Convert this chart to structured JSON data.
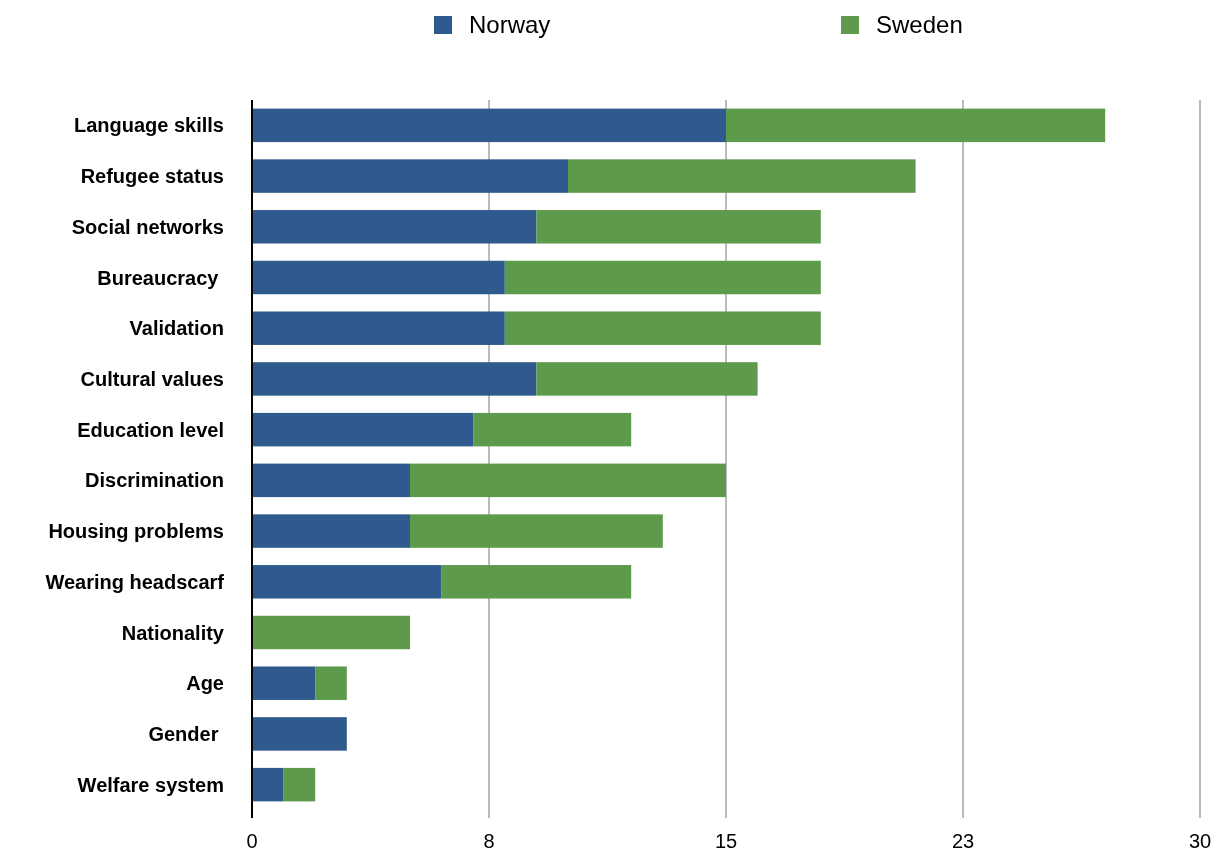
{
  "chart_data": {
    "type": "bar",
    "orientation": "horizontal",
    "stacked": true,
    "categories": [
      "Language skills",
      "Refugee status",
      "Social networks",
      "Bureaucracy ",
      "Validation",
      "Cultural values",
      "Education level",
      "Discrimination",
      "Housing problems",
      "Wearing headscarf",
      "Nationality",
      "Age",
      "Gender ",
      "Welfare system"
    ],
    "series": [
      {
        "name": "Norway",
        "color": "#2e5a8e",
        "values": [
          15,
          10,
          9,
          8,
          8,
          9,
          7,
          5,
          5,
          6,
          0,
          2,
          3,
          1
        ]
      },
      {
        "name": "Sweden",
        "color": "#5e9a4b",
        "values": [
          12,
          11,
          9,
          10,
          10,
          7,
          5,
          10,
          8,
          6,
          5,
          1,
          0,
          1
        ]
      }
    ],
    "xlim": [
      0,
      30
    ],
    "xticks": [
      0,
      {
        "value": 7.5,
        "label": "8"
      },
      15,
      {
        "value": 22.5,
        "label": "23"
      },
      30
    ],
    "grid": "x",
    "legend": "top"
  }
}
